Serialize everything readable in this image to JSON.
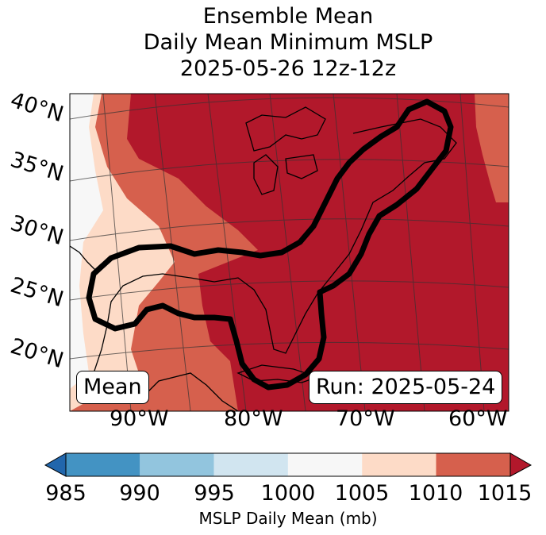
{
  "title": {
    "line1": "Ensemble Mean",
    "line2": "Daily Mean Minimum MSLP",
    "line3": "2025-05-26 12z-12z"
  },
  "map": {
    "lat_labels": [
      "40°N",
      "35°N",
      "30°N",
      "25°N",
      "20°N"
    ],
    "lon_labels": [
      "90°W",
      "80°W",
      "70°W",
      "60°W"
    ],
    "left_box": "Mean",
    "right_box": "Run: 2025-05-24",
    "colors": {
      "band_1000_1005": "#f7f7f7",
      "band_1005_1010": "#fddbc7",
      "band_1010_1015": "#d6604d",
      "band_over_1015": "#b2182b",
      "contour": "#000000"
    },
    "contour_meaning": "1015 mb highlight contour along eastern US"
  },
  "colorbar": {
    "label": "MSLP Daily Mean (mb)",
    "ticks": [
      "985",
      "990",
      "995",
      "1000",
      "1005",
      "1010",
      "1015"
    ],
    "bins": [
      {
        "range": "below 985",
        "color": "#2166ac"
      },
      {
        "range": "985-990",
        "color": "#4393c3"
      },
      {
        "range": "990-995",
        "color": "#92c5de"
      },
      {
        "range": "995-1000",
        "color": "#d1e5f0"
      },
      {
        "range": "1000-1005",
        "color": "#f7f7f7"
      },
      {
        "range": "1005-1010",
        "color": "#fddbc7"
      },
      {
        "range": "1010-1015",
        "color": "#d6604d"
      },
      {
        "range": "above 1015",
        "color": "#b2182b"
      }
    ]
  }
}
